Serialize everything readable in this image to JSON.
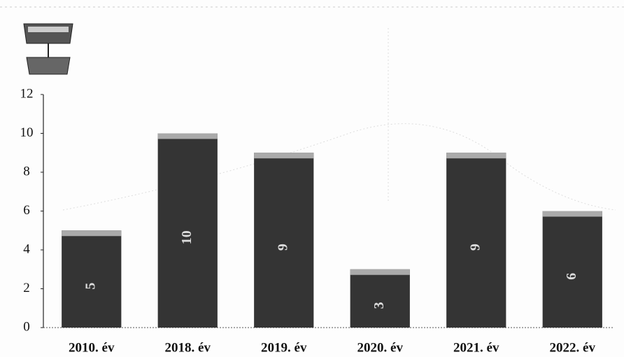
{
  "chart_data": {
    "type": "bar",
    "categories": [
      "2010. év",
      "2018. év",
      "2019. év",
      "2020. év",
      "2021. év",
      "2022. év"
    ],
    "values": [
      5,
      10,
      9,
      3,
      9,
      6
    ],
    "color": "#343434",
    "ylim": [
      0,
      12
    ],
    "yticks": [
      0,
      2,
      4,
      6,
      8,
      10,
      12
    ],
    "data_labels": true
  }
}
